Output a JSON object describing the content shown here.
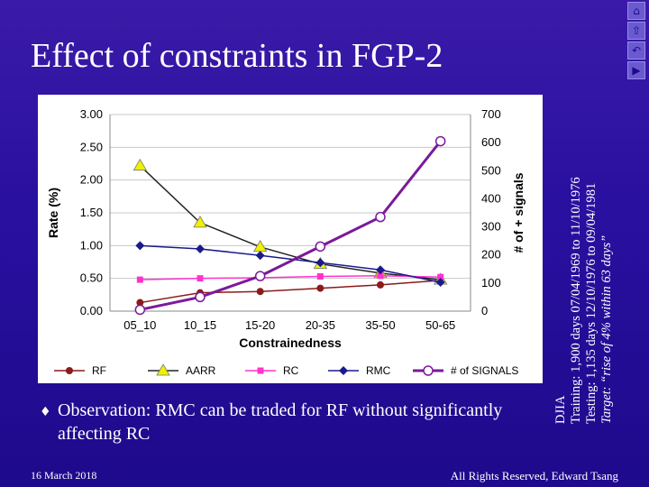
{
  "slide": {
    "title": "Effect of constraints in FGP-2",
    "bullet": "Observation: RMC can be traded for RF without significantly affecting RC",
    "footer_date": "16 March 2018",
    "footer_copyright": "All Rights Reserved, Edward Tsang",
    "side_info": [
      "DJIA",
      "Training: 1,900 days 07/04/1969 to 11/10/1976",
      "Testing: 1,135 days 12/10/1976 to 09/04/1981",
      "Target: “rise of 4% within 63 days”"
    ]
  },
  "nav": {
    "icons": [
      "home-icon",
      "up-icon",
      "back-icon",
      "forward-icon"
    ]
  },
  "chart_data": {
    "type": "line",
    "xlabel": "Constrainedness",
    "ylabel": "Rate (%)",
    "y2label": "# of + signals",
    "categories": [
      "05_10",
      "10_15",
      "15-20",
      "20-35",
      "35-50",
      "50-65"
    ],
    "ylim": [
      0,
      3.0
    ],
    "yticks": [
      "0.00",
      "0.50",
      "1.00",
      "1.50",
      "2.00",
      "2.50",
      "3.00"
    ],
    "y2lim": [
      0,
      700
    ],
    "y2ticks": [
      "0",
      "100",
      "200",
      "300",
      "400",
      "500",
      "600",
      "700"
    ],
    "grid": true,
    "legend_position": "bottom",
    "series": [
      {
        "name": "RF",
        "axis": "left",
        "color": "#8b1a1a",
        "marker": "circle",
        "values": [
          0.13,
          0.28,
          0.3,
          0.35,
          0.4,
          0.47
        ]
      },
      {
        "name": "AARR",
        "axis": "left",
        "color": "#222222",
        "marker": "triangle",
        "values": [
          2.22,
          1.35,
          0.98,
          0.72,
          0.58,
          0.48
        ]
      },
      {
        "name": "RC",
        "axis": "left",
        "color": "#ff33cc",
        "marker": "square",
        "values": [
          0.48,
          0.5,
          0.51,
          0.53,
          0.54,
          0.52
        ]
      },
      {
        "name": "RMC",
        "axis": "left",
        "color": "#1a1a8c",
        "marker": "diamond",
        "values": [
          1.0,
          0.95,
          0.85,
          0.74,
          0.63,
          0.44
        ]
      },
      {
        "name": "# of SIGNALS",
        "axis": "right",
        "color": "#7a1a9a",
        "marker": "open-circle",
        "values": [
          5,
          50,
          125,
          230,
          335,
          605
        ]
      }
    ]
  }
}
